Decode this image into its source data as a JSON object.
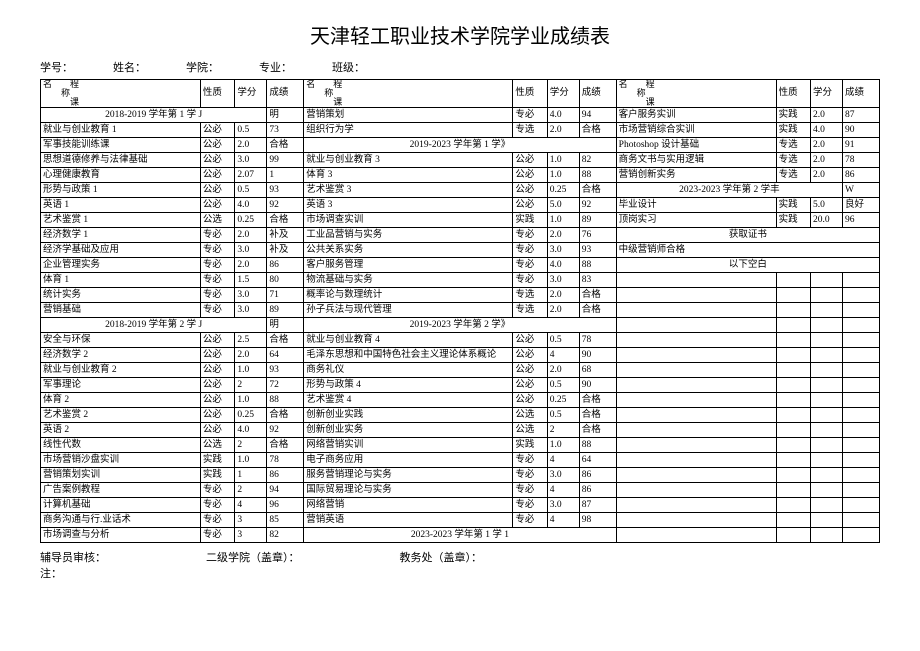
{
  "title": "天津轻工职业技术学院学业成绩表",
  "meta": {
    "student_id_label": "学号：",
    "name_label": "姓名：",
    "college_label": "学院：",
    "major_label": "专业：",
    "class_label": "班级："
  },
  "headers": {
    "name_line1": "名　　程",
    "name_line2": "　　称",
    "name_line3": "　　　课",
    "nature": "性质",
    "credit": "学分",
    "score": "成绩"
  },
  "footer": {
    "advisor": "辅导员审核：",
    "college_seal": "二级学院（盖章）：",
    "office_seal": "教务处（盖章）：",
    "note": "注："
  },
  "rows": [
    {
      "c1": {
        "name": "2018-2019 学年第 1 学 J",
        "term": 1,
        "span": 1,
        "nat": "明"
      },
      "c2": {
        "name": "营销策划",
        "nat": "专必",
        "cred": "4.0",
        "score": "94"
      },
      "c3": {
        "name": "客户服务实训",
        "nat": "实践",
        "cred": "2.0",
        "score": "87"
      }
    },
    {
      "c1": {
        "name": "就业与创业教育 1",
        "nat": "公必",
        "cred": "0.5",
        "score": "73"
      },
      "c2": {
        "name": "组织行为学",
        "nat": "专选",
        "cred": "2.0",
        "score": "合格"
      },
      "c3": {
        "name": "市场营销综合实训",
        "nat": "实践",
        "cred": "4.0",
        "score": "90"
      }
    },
    {
      "c1": {
        "name": "军事技能训练课",
        "nat": "公必",
        "cred": "2.0",
        "score": "合格"
      },
      "c2": {
        "name": "2019-2023 学年第 1 学》",
        "term": 1
      },
      "c3": {
        "name": "Photoshop 设计基础",
        "nat": "专选",
        "cred": "2.0",
        "score": "91"
      }
    },
    {
      "c1": {
        "name": "思想道德修养与法律基础",
        "nat": "公必",
        "cred": "3.0",
        "score": "99"
      },
      "c2": {
        "name": "就业与创业教育 3",
        "nat": "公必",
        "cred": "1.0",
        "score": "82"
      },
      "c3": {
        "name": "商务文书与实用逻辑",
        "nat": "专选",
        "cred": "2.0",
        "score": "78"
      }
    },
    {
      "c1": {
        "name": "心理健康教育",
        "nat": "公必",
        "cred": "2.07",
        "score": "1"
      },
      "c2": {
        "name": "体育 3",
        "nat": "公必",
        "cred": "1.0",
        "score": "88"
      },
      "c3": {
        "name": "营销创新实务",
        "nat": "专选",
        "cred": "2.0",
        "score": "86"
      }
    },
    {
      "c1": {
        "name": "形势与政策 1",
        "nat": "公必",
        "cred": "0.5",
        "score": "93"
      },
      "c2": {
        "name": "艺术鉴赏 3",
        "nat": "公必",
        "cred": "0.25",
        "score": "合格"
      },
      "c3": {
        "name": "2023-2023 学年第 2 学丰",
        "term": 1,
        "span": 1,
        "nat": "W"
      }
    },
    {
      "c1": {
        "name": "英语 1",
        "nat": "公必",
        "cred": "4.0",
        "score": "92"
      },
      "c2": {
        "name": "英语 3",
        "nat": "公必",
        "cred": "5.0",
        "score": "92"
      },
      "c3": {
        "name": "毕业设计",
        "nat": "实践",
        "cred": "5.0",
        "score": "良好"
      }
    },
    {
      "c1": {
        "name": "艺术鉴赏 1",
        "nat": "公选",
        "cred": "0.25",
        "score": "合格"
      },
      "c2": {
        "name": "市场调查实训",
        "nat": "实践",
        "cred": "1.0",
        "score": "89"
      },
      "c3": {
        "name": "顶岗实习",
        "nat": "实践",
        "cred": "20.0",
        "score": "96"
      }
    },
    {
      "c1": {
        "name": "经济数学 1",
        "nat": "专必",
        "cred": "2.0",
        "score": "补及"
      },
      "c2": {
        "name": "工业品营销与实务",
        "nat": "专必",
        "cred": "2.0",
        "score": "76"
      },
      "c3": {
        "name": "获取证书",
        "center": 1
      }
    },
    {
      "c1": {
        "name": "经济学基础及应用",
        "nat": "专必",
        "cred": "3.0",
        "score": "补及"
      },
      "c2": {
        "name": "公共关系实务",
        "nat": "专必",
        "cred": "3.0",
        "score": "93"
      },
      "c3": {
        "name": "中级营销师合格",
        "span4": 1
      }
    },
    {
      "c1": {
        "name": "企业管理实务",
        "nat": "专必",
        "cred": "2.0",
        "score": "86"
      },
      "c2": {
        "name": "客户服务管理",
        "nat": "专必",
        "cred": "4.0",
        "score": "88"
      },
      "c3": {
        "name": "以下空白",
        "center": 1
      }
    },
    {
      "c1": {
        "name": "体育 1",
        "nat": "专必",
        "cred": "1.5",
        "score": "80"
      },
      "c2": {
        "name": "物流基础与实务",
        "nat": "专必",
        "cred": "3.0",
        "score": "83"
      },
      "c3": {
        "blank": 1
      }
    },
    {
      "c1": {
        "name": "统计实务",
        "nat": "专必",
        "cred": "3.0",
        "score": "71"
      },
      "c2": {
        "name": "概率论与数理统计",
        "nat": "专选",
        "cred": "2.0",
        "score": "合格"
      },
      "c3": {
        "blank": 1
      }
    },
    {
      "c1": {
        "name": "营销基础",
        "nat": "专必",
        "cred": "3.0",
        "score": "89"
      },
      "c2": {
        "name": "孙子兵法与现代管理",
        "nat": "专选",
        "cred": "2.0",
        "score": "合格"
      },
      "c3": {
        "blank": 1
      }
    },
    {
      "c1": {
        "name": "2018-2019 学年第 2 学 J",
        "term": 1,
        "span": 1,
        "nat": "明"
      },
      "c2": {
        "name": "2019-2023 学年第 2 学》",
        "term": 1
      },
      "c3": {
        "blank": 1
      }
    },
    {
      "c1": {
        "name": "安全与环保",
        "nat": "公必",
        "cred": "2.5",
        "score": "合格"
      },
      "c2": {
        "name": "就业与创业教育 4",
        "nat": "公必",
        "cred": "0.5",
        "score": "78"
      },
      "c3": {
        "blank": 1
      }
    },
    {
      "c1": {
        "name": "经济数学 2",
        "nat": "公必",
        "cred": "2.0",
        "score": "64"
      },
      "c2": {
        "name": "毛泽东思想和中国特色社会主义理论体系概论",
        "nat": "公必",
        "cred": "4",
        "score": "90"
      },
      "c3": {
        "blank": 1
      }
    },
    {
      "c1": {
        "name": "就业与创业教育 2",
        "nat": "公必",
        "cred": "1.0",
        "score": "93"
      },
      "c2": {
        "name": "商务礼仪",
        "nat": "公必",
        "cred": "2.0",
        "score": "68"
      },
      "c3": {
        "blank": 1
      }
    },
    {
      "c1": {
        "name": "军事理论",
        "nat": "公必",
        "cred": "2",
        "score": "72"
      },
      "c2": {
        "name": "形势与政策 4",
        "nat": "公必",
        "cred": "0.5",
        "score": "90"
      },
      "c3": {
        "blank": 1
      }
    },
    {
      "c1": {
        "name": "体育 2",
        "nat": "公必",
        "cred": "1.0",
        "score": "88"
      },
      "c2": {
        "name": "艺术鉴赏 4",
        "nat": "公必",
        "cred": "0.25",
        "score": "合格"
      },
      "c3": {
        "blank": 1
      }
    },
    {
      "c1": {
        "name": "艺术鉴赏 2",
        "nat": "公必",
        "cred": "0.25",
        "score": "合格"
      },
      "c2": {
        "name": "创新创业实践",
        "nat": "公选",
        "cred": "0.5",
        "score": "合格"
      },
      "c3": {
        "blank": 1
      }
    },
    {
      "c1": {
        "name": "英语 2",
        "nat": "公必",
        "cred": "4.0",
        "score": "92"
      },
      "c2": {
        "name": "创新创业实务",
        "nat": "公选",
        "cred": "2",
        "score": "合格"
      },
      "c3": {
        "blank": 1
      }
    },
    {
      "c1": {
        "name": "线性代数",
        "nat": "公选",
        "cred": "2",
        "score": "合格"
      },
      "c2": {
        "name": "网络营销实训",
        "nat": "实践",
        "cred": "1.0",
        "score": "88"
      },
      "c3": {
        "blank": 1
      }
    },
    {
      "c1": {
        "name": "市场营销沙盘实训",
        "nat": "实践",
        "cred": "1.0",
        "score": "78"
      },
      "c2": {
        "name": "电子商务应用",
        "nat": "专必",
        "cred": "4",
        "score": "64"
      },
      "c3": {
        "blank": 1
      }
    },
    {
      "c1": {
        "name": "营销策划实训",
        "nat": "实践",
        "cred": "1",
        "score": "86"
      },
      "c2": {
        "name": "服务营销理论与实务",
        "nat": "专必",
        "cred": "3.0",
        "score": "86"
      },
      "c3": {
        "blank": 1
      }
    },
    {
      "c1": {
        "name": "广告案例教程",
        "nat": "专必",
        "cred": "2",
        "score": "94"
      },
      "c2": {
        "name": "国际贸易理论与实务",
        "nat": "专必",
        "cred": "4",
        "score": "86"
      },
      "c3": {
        "blank": 1
      }
    },
    {
      "c1": {
        "name": "计算机基础",
        "nat": "专必",
        "cred": "4",
        "score": "96"
      },
      "c2": {
        "name": "网络营销",
        "nat": "专必",
        "cred": "3.0",
        "score": "87"
      },
      "c3": {
        "blank": 1
      }
    },
    {
      "c1": {
        "name": "商务沟通与行.业话术",
        "nat": "专必",
        "cred": "3",
        "score": "85"
      },
      "c2": {
        "name": "营销英语",
        "nat": "专必",
        "cred": "4",
        "score": "98"
      },
      "c3": {
        "blank": 1
      }
    },
    {
      "c1": {
        "name": "市场调查与分析",
        "nat": "专必",
        "cred": "3",
        "score": "82"
      },
      "c2": {
        "name": "2023-2023 学年第 1 学 1",
        "term": 1
      },
      "c3": {
        "blank": 1
      }
    }
  ]
}
